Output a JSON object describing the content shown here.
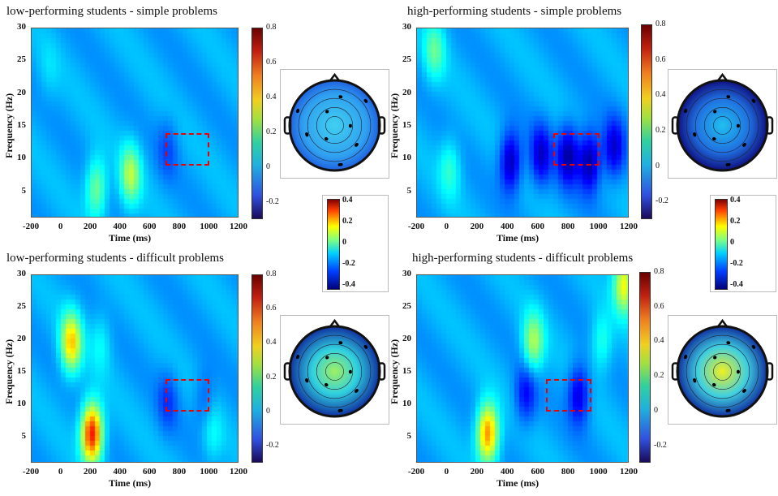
{
  "chart_data": [
    {
      "type": "heatmap",
      "title": "low-performing students - simple problems",
      "xlabel": "Time (ms)",
      "ylabel": "Frequency (Hz)",
      "xlim": [
        -200,
        1200
      ],
      "ylim": [
        1,
        30
      ],
      "xticks": [
        "-200",
        "0",
        "200",
        "400",
        "600",
        "800",
        "1000",
        "1200"
      ],
      "yticks": [
        "5",
        "10",
        "15",
        "20",
        "25",
        "30"
      ],
      "colorbar_ticks": [
        "0.8",
        "0.6",
        "0.4",
        "0.2",
        "0",
        "-0.2"
      ],
      "highlight_box": {
        "x": [
          700,
          1000
        ],
        "y": [
          9,
          14
        ]
      },
      "blobs": [
        {
          "t": 220,
          "f": 6,
          "v": 0.25
        },
        {
          "t": 450,
          "f": 8,
          "v": 0.3
        },
        {
          "t": -100,
          "f": 24,
          "v": 0.05
        },
        {
          "t": 700,
          "f": 12,
          "v": -0.1
        }
      ]
    },
    {
      "type": "heatmap",
      "title": "high-performing students - simple problems",
      "xlabel": "Time (ms)",
      "ylabel": "Frequency (Hz)",
      "xlim": [
        -200,
        1200
      ],
      "ylim": [
        1,
        30
      ],
      "xticks": [
        "-200",
        "0",
        "200",
        "400",
        "600",
        "800",
        "1000",
        "1200"
      ],
      "yticks": [
        "5",
        "10",
        "15",
        "20",
        "25",
        "30"
      ],
      "colorbar_ticks": [
        "0.8",
        "0.6",
        "0.4",
        "0.2",
        "0",
        "-0.2"
      ],
      "highlight_box": {
        "x": [
          700,
          1000
        ],
        "y": [
          9,
          14
        ]
      },
      "blobs": [
        {
          "t": 400,
          "f": 10,
          "v": -0.3
        },
        {
          "t": 600,
          "f": 11,
          "v": -0.25
        },
        {
          "t": 780,
          "f": 11,
          "v": -0.3
        },
        {
          "t": 920,
          "f": 10,
          "v": -0.32
        },
        {
          "t": 1080,
          "f": 12,
          "v": -0.25
        },
        {
          "t": -100,
          "f": 27,
          "v": 0.2
        },
        {
          "t": 0,
          "f": 9,
          "v": 0.15
        }
      ]
    },
    {
      "type": "heatmap",
      "title": "low-performing students - difficult problems",
      "xlabel": "Time (ms)",
      "ylabel": "Frequency (Hz)",
      "xlim": [
        -200,
        1200
      ],
      "ylim": [
        1,
        30
      ],
      "xticks": [
        "-200",
        "0",
        "200",
        "400",
        "600",
        "800",
        "1000",
        "1200"
      ],
      "yticks": [
        "5",
        "10",
        "15",
        "20",
        "25",
        "30"
      ],
      "colorbar_ticks": [
        "0.8",
        "0.6",
        "0.4",
        "0.2",
        "0",
        "-0.2"
      ],
      "highlight_box": {
        "x": [
          700,
          1000
        ],
        "y": [
          9,
          14
        ]
      },
      "blobs": [
        {
          "t": 190,
          "f": 6,
          "v": 0.7
        },
        {
          "t": 50,
          "f": 20,
          "v": 0.45
        },
        {
          "t": 250,
          "f": 20,
          "v": 0.1
        },
        {
          "t": 700,
          "f": 11,
          "v": -0.12
        },
        {
          "t": 950,
          "f": 11,
          "v": -0.1
        },
        {
          "t": 1000,
          "f": 6,
          "v": 0.1
        }
      ]
    },
    {
      "type": "heatmap",
      "title": "high-performing students - difficult problems",
      "xlabel": "Time (ms)",
      "ylabel": "Frequency (Hz)",
      "xlim": [
        -200,
        1200
      ],
      "ylim": [
        1,
        30
      ],
      "xticks": [
        "-200",
        "0",
        "200",
        "400",
        "600",
        "800",
        "1000",
        "1200"
      ],
      "yticks": [
        "5",
        "10",
        "15",
        "20",
        "25",
        "30"
      ],
      "colorbar_ticks": [
        "0.8",
        "0.6",
        "0.4",
        "0.2",
        "0",
        "-0.2"
      ],
      "highlight_box": {
        "x": [
          650,
          950
        ],
        "y": [
          9,
          14
        ]
      },
      "blobs": [
        {
          "t": 250,
          "f": 6,
          "v": 0.55
        },
        {
          "t": 550,
          "f": 20,
          "v": 0.3
        },
        {
          "t": 1150,
          "f": 29,
          "v": 0.4
        },
        {
          "t": 500,
          "f": 12,
          "v": -0.2
        },
        {
          "t": 850,
          "f": 12,
          "v": -0.25
        },
        {
          "t": 1000,
          "f": 20,
          "v": 0.15
        }
      ]
    }
  ],
  "topo_colorbar_ticks": [
    "0.4",
    "0.2",
    "0",
    "-0.2",
    "-0.4"
  ]
}
